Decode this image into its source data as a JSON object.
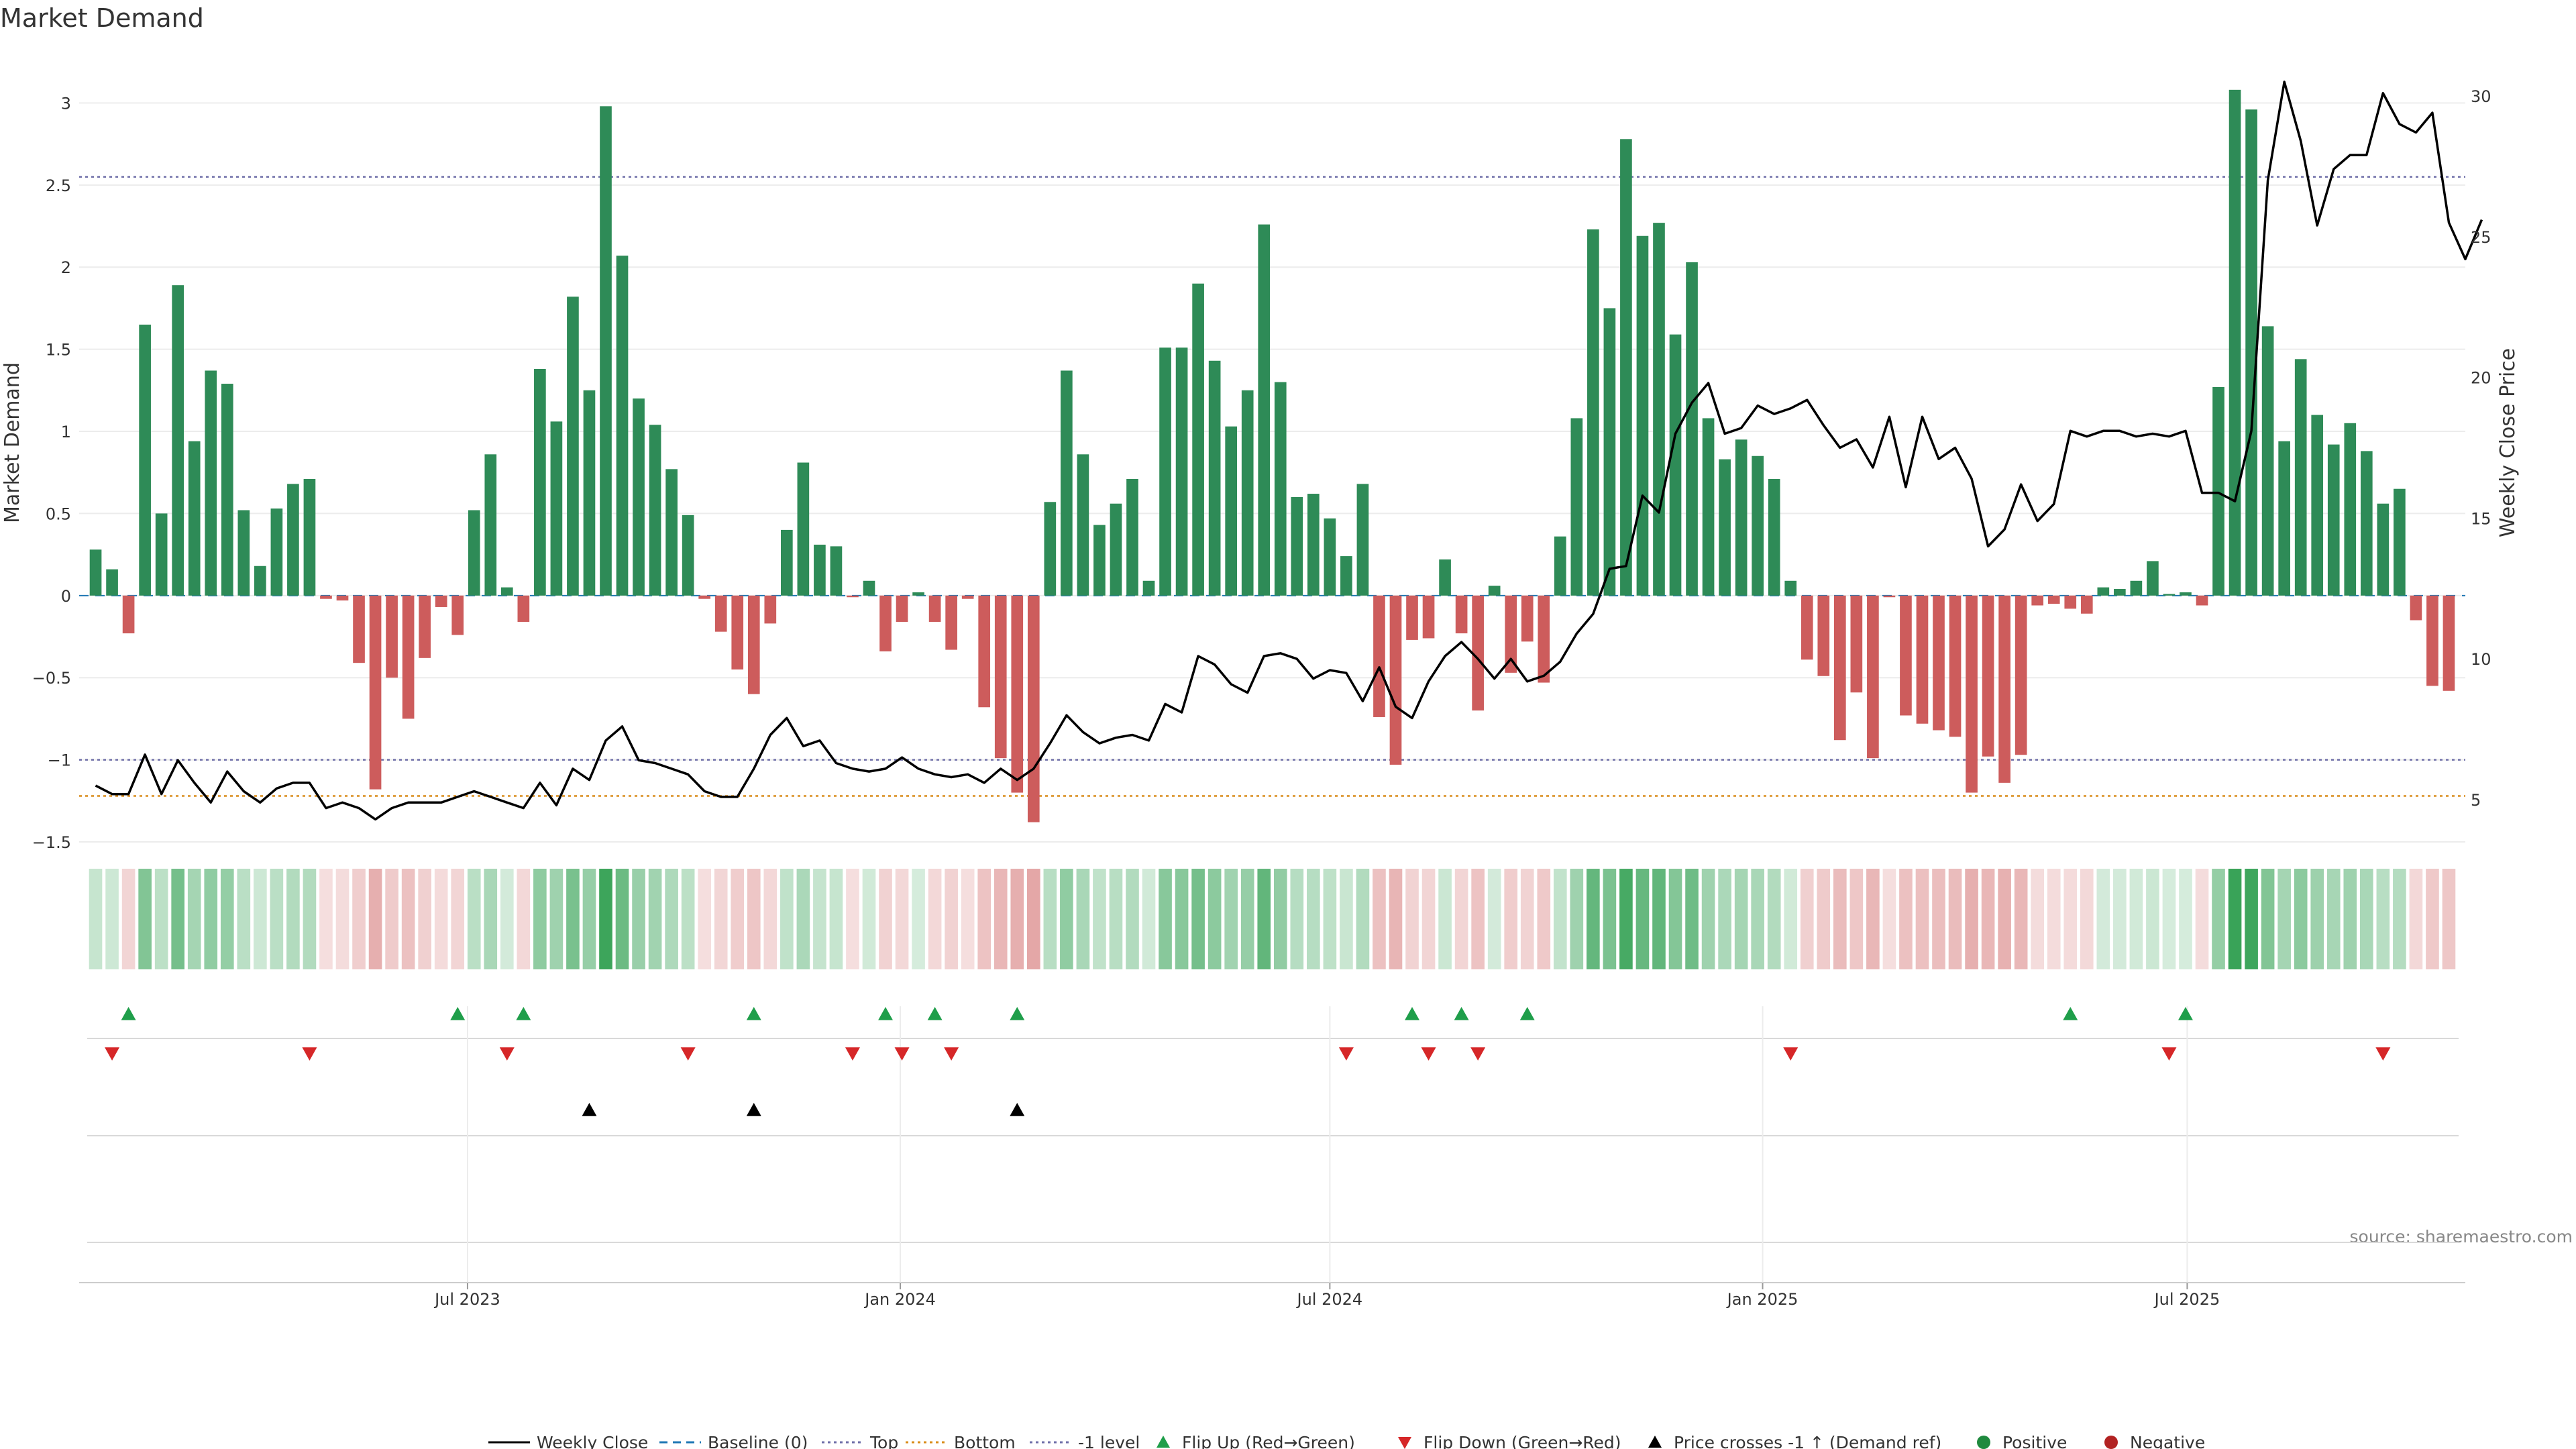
{
  "chart_data": {
    "type": "bar",
    "title": "Market Demand",
    "ylabel": "Market Demand",
    "y2label": "Weekly Close Price",
    "source": "source: sharemaestro.com",
    "ylim": [
      -1.5,
      3.3
    ],
    "y2lim": [
      3.5,
      31.5
    ],
    "x_range_weeks": [
      -1,
      144
    ],
    "y_ticks": [
      {
        "v": 3,
        "label": "3"
      },
      {
        "v": 2.5,
        "label": "2.5"
      },
      {
        "v": 2,
        "label": "2"
      },
      {
        "v": 1.5,
        "label": "1.5"
      },
      {
        "v": 1,
        "label": "1"
      },
      {
        "v": 0.5,
        "label": "0.5"
      },
      {
        "v": 0,
        "label": "0"
      },
      {
        "v": -0.5,
        "label": "−0.5"
      },
      {
        "v": -1,
        "label": "−1"
      },
      {
        "v": -1.5,
        "label": "−1.5"
      }
    ],
    "y2_ticks": [
      {
        "v": 30,
        "label": "30"
      },
      {
        "v": 25,
        "label": "25"
      },
      {
        "v": 20,
        "label": "20"
      },
      {
        "v": 15,
        "label": "15"
      },
      {
        "v": 10,
        "label": "10"
      },
      {
        "v": 5,
        "label": "5"
      }
    ],
    "x_ticks": [
      {
        "w": 22.6,
        "label": "Jul 2023"
      },
      {
        "w": 48.9,
        "label": "Jan 2024"
      },
      {
        "w": 75,
        "label": "Jul 2024"
      },
      {
        "w": 101.3,
        "label": "Jan 2025"
      },
      {
        "w": 127.1,
        "label": "Jul 2025"
      }
    ],
    "levels": {
      "baseline": 0,
      "top": 2.55,
      "bottom": -1.22,
      "minus_one": -1.0
    },
    "demand": [
      0.28,
      0.16,
      -0.23,
      1.65,
      0.5,
      1.89,
      0.94,
      1.37,
      1.29,
      0.52,
      0.18,
      0.53,
      0.68,
      0.71,
      -0.02,
      -0.03,
      -0.41,
      -1.18,
      -0.5,
      -0.75,
      -0.38,
      -0.07,
      -0.24,
      0.52,
      0.86,
      0.05,
      -0.16,
      1.38,
      1.06,
      1.82,
      1.25,
      2.98,
      2.07,
      1.2,
      1.04,
      0.77,
      0.49,
      -0.02,
      -0.22,
      -0.45,
      -0.6,
      -0.17,
      0.4,
      0.81,
      0.31,
      0.3,
      -0.01,
      0.09,
      -0.34,
      -0.16,
      0.02,
      -0.16,
      -0.33,
      -0.02,
      -0.68,
      -0.99,
      -1.2,
      -1.38,
      0.57,
      1.37,
      0.86,
      0.43,
      0.56,
      0.71,
      0.09,
      1.51,
      1.51,
      1.9,
      1.43,
      1.03,
      1.25,
      2.26,
      1.3,
      0.6,
      0.62,
      0.47,
      0.24,
      0.68,
      -0.74,
      -1.03,
      -0.27,
      -0.26,
      0.22,
      -0.23,
      -0.7,
      0.06,
      -0.47,
      -0.28,
      -0.53,
      0.36,
      1.08,
      2.23,
      1.75,
      2.78,
      2.19,
      2.27,
      1.59,
      2.03,
      1.08,
      0.83,
      0.95,
      0.85,
      0.71,
      0.09,
      -0.39,
      -0.49,
      -0.88,
      -0.59,
      -0.99,
      -0.01,
      -0.73,
      -0.78,
      -0.82,
      -0.86,
      -1.2,
      -0.98,
      -1.14,
      -0.97,
      -0.06,
      -0.05,
      -0.08,
      -0.11,
      0.05,
      0.04,
      0.09,
      0.21,
      0.01,
      0.02,
      -0.06,
      1.27,
      3.08,
      2.96,
      1.64,
      0.94,
      1.44,
      1.1,
      0.92,
      1.05,
      0.88,
      0.56,
      0.65,
      -0.15,
      -0.55,
      -0.58
    ],
    "close": [
      5.5,
      5.2,
      5.2,
      6.6,
      5.2,
      6.4,
      5.6,
      4.9,
      6,
      5.3,
      4.9,
      5.4,
      5.6,
      5.6,
      4.7,
      4.9,
      4.7,
      4.3,
      4.7,
      4.9,
      4.9,
      4.9,
      5.1,
      5.3,
      5.1,
      4.9,
      4.7,
      5.6,
      4.8,
      6.1,
      5.7,
      7.1,
      7.6,
      6.4,
      6.3,
      6.1,
      5.9,
      5.3,
      5.1,
      5.1,
      6.1,
      7.3,
      7.9,
      6.9,
      7.1,
      6.3,
      6.1,
      6,
      6.1,
      6.5,
      6.1,
      5.9,
      5.8,
      5.9,
      5.6,
      6.1,
      5.7,
      6.1,
      7,
      8,
      7.4,
      7,
      7.2,
      7.3,
      7.1,
      8.4,
      8.1,
      10.1,
      9.8,
      9.1,
      8.8,
      10.1,
      10.2,
      10,
      9.3,
      9.6,
      9.5,
      8.5,
      9.7,
      8.3,
      7.9,
      9.2,
      10.1,
      10.6,
      10,
      9.3,
      10,
      9.2,
      9.4,
      9.9,
      10.9,
      11.6,
      13.2,
      13.3,
      15.8,
      15.2,
      18,
      19.1,
      19.8,
      18,
      18.2,
      19,
      18.7,
      18.9,
      19.2,
      18.3,
      17.5,
      17.8,
      16.8,
      18.6,
      16.1,
      18.6,
      17.1,
      17.5,
      16.4,
      14,
      14.6,
      16.2,
      14.9,
      15.5,
      18.1,
      17.9,
      18.1,
      18.1,
      17.9,
      18,
      17.9,
      18.1,
      15.9,
      15.9,
      15.6,
      18.1,
      27,
      30.5,
      28.4,
      25.4,
      27.4,
      27.9,
      27.9,
      30.1,
      29,
      28.7,
      29.4,
      25.5,
      24.2,
      25.6
    ],
    "flip_up_weeks": [
      2,
      22,
      26,
      40,
      48,
      51,
      56,
      80,
      83,
      87,
      120,
      127
    ],
    "flip_down_weeks": [
      1,
      13,
      25,
      36,
      46,
      49,
      52,
      76,
      81,
      84,
      103,
      126,
      139
    ],
    "cross_weeks": [
      30,
      40,
      56
    ],
    "series": [
      {
        "name": "Weekly Close",
        "style": "line-solid",
        "color": "#000000"
      },
      {
        "name": "Baseline (0)",
        "style": "line-dash",
        "color": "#1f77b4"
      },
      {
        "name": "Top",
        "style": "line-dot",
        "color": "#6f6fa8"
      },
      {
        "name": "Bottom",
        "style": "line-dot",
        "color": "#d98c1a"
      },
      {
        "name": "-1 level",
        "style": "line-dot",
        "color": "#6f6fa8"
      },
      {
        "name": "Flip Up (Red→Green)",
        "style": "tri-up",
        "color": "#1f9e4a"
      },
      {
        "name": "Flip Down (Green→Red)",
        "style": "tri-down",
        "color": "#d62728"
      },
      {
        "name": "Price crosses -1 ↑ (Demand ref)",
        "style": "tri-up",
        "color": "#000000"
      },
      {
        "name": "Positive",
        "style": "dot",
        "color": "#1f8a3e"
      },
      {
        "name": "Negative",
        "style": "dot",
        "color": "#b22222"
      }
    ],
    "colors": {
      "positive": "#2e8b57",
      "negative": "#cd5c5c",
      "heat_pos": "#2e9e4f",
      "heat_neg": "#cd5c5c"
    }
  }
}
